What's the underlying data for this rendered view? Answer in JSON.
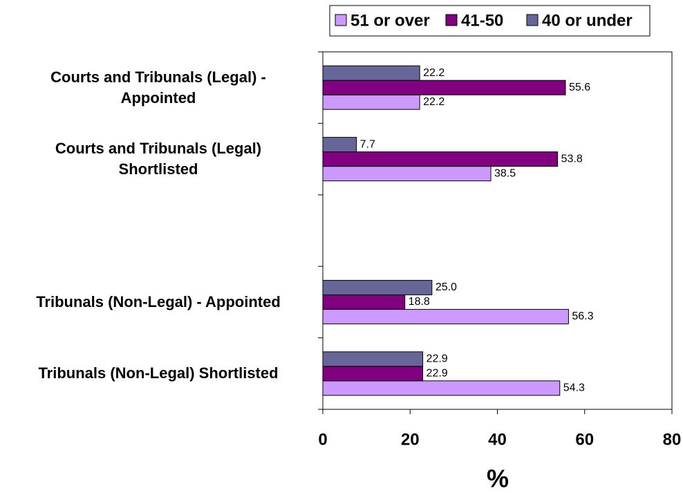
{
  "chart_data": {
    "type": "hbar",
    "categories": [
      "Courts and Tribunals (Legal) -\nAppointed",
      "Courts and Tribunals (Legal)\nShortlisted",
      null,
      "Tribunals (Non-Legal) - Appointed",
      "Tribunals (Non-Legal) Shortlisted"
    ],
    "series": [
      {
        "name": "51 or over",
        "color": "#cc99ff",
        "values": [
          22.2,
          38.5,
          null,
          56.3,
          54.3
        ],
        "value_labels": [
          "22.2",
          "38.5",
          null,
          "56.3",
          "54.3"
        ]
      },
      {
        "name": "41-50",
        "color": "#800080",
        "values": [
          55.6,
          53.8,
          null,
          18.8,
          22.9
        ],
        "value_labels": [
          "55.6",
          "53.8",
          null,
          "18.8",
          "22.9"
        ]
      },
      {
        "name": "40 or under",
        "color": "#666699",
        "values": [
          22.2,
          7.7,
          null,
          25.0,
          22.9
        ],
        "value_labels": [
          "22.2",
          "7.7",
          null,
          "25.0",
          "22.9"
        ]
      }
    ],
    "xlabel": "%",
    "xlim": [
      0,
      80
    ],
    "xticks": [
      0,
      20,
      40,
      60,
      80
    ],
    "legend": "top"
  }
}
